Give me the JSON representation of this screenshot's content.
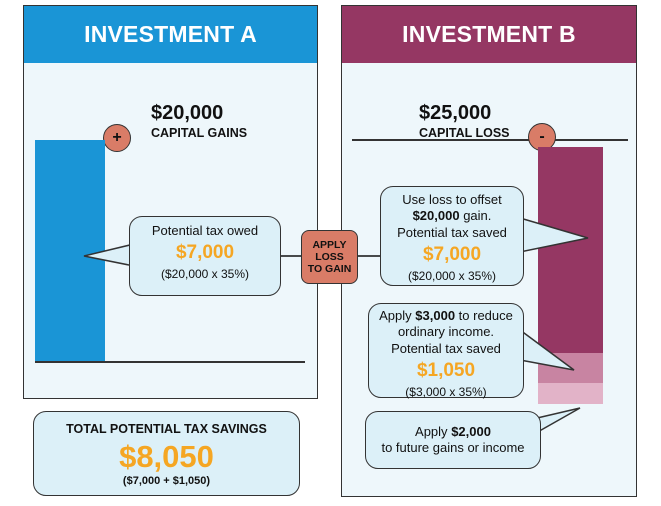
{
  "investment_a": {
    "title": "INVESTMENT A",
    "amount": "$20,000",
    "amount_label": "CAPITAL GAINS",
    "sign": "+",
    "bubble": {
      "line1": "Potential tax owed",
      "value": "$7,000",
      "formula": "($20,000 x 35%)"
    }
  },
  "apply": {
    "line1": "APPLY",
    "line2": "LOSS",
    "line3": "TO GAIN"
  },
  "investment_b": {
    "title": "INVESTMENT B",
    "amount": "$25,000",
    "amount_label": "CAPITAL LOSS",
    "sign": "-",
    "bubble1": {
      "pre": "Use loss to offset",
      "bold": "$20,000",
      "post": "gain.",
      "line3": "Potential tax saved",
      "value": "$7,000",
      "formula": "($20,000 x 35%)"
    },
    "bubble2": {
      "pre": "Apply",
      "bold": "$3,000",
      "post": "to reduce",
      "line2": "ordinary income.",
      "line3": "Potential tax saved",
      "value": "$1,050",
      "formula": "($3,000 x 35%)"
    },
    "bubble3": {
      "pre": "Apply",
      "bold": "$2,000",
      "line2": "to future gains or income"
    }
  },
  "total": {
    "label": "TOTAL POTENTIAL TAX SAVINGS",
    "value": "$8,050",
    "formula": "($7,000 + $1,050)"
  },
  "colors": {
    "investment_a": "#1a95d6",
    "investment_b": "#953763",
    "loss_offset_gain": "#953763",
    "loss_ordinary_income": "#c884a2",
    "loss_carryforward": "#e2b3c8",
    "highlight_value": "#f5a623",
    "sign_circle": "#d97c67"
  },
  "bars": {
    "capital_gain": 20000,
    "capital_loss_segments": [
      20000,
      3000,
      2000
    ]
  }
}
